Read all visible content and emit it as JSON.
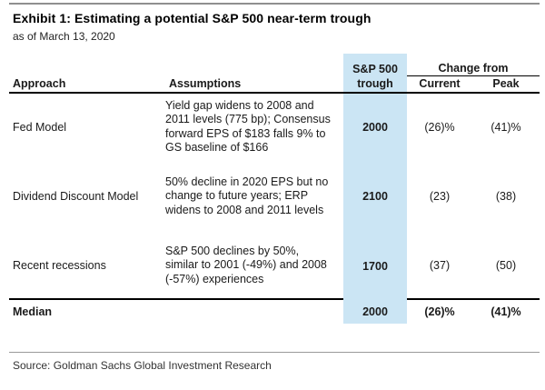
{
  "title": "Exhibit 1: Estimating a potential S&P 500 near-term trough",
  "subtitle": "as of March 13, 2020",
  "source": "Source: Goldman Sachs Global Investment Research",
  "colors": {
    "highlight": "#cbe5f4"
  },
  "table": {
    "headers": {
      "approach": "Approach",
      "assumptions": "Assumptions",
      "trough_line1": "S&P 500",
      "trough_line2": "trough",
      "change_from": "Change from",
      "current": "Current",
      "peak": "Peak"
    },
    "rows": [
      {
        "approach": "Fed Model",
        "assumptions": "Yield gap widens to 2008 and\n2011 levels (775 bp); Consensus\nforward EPS of $183 falls 9% to\nGS baseline of $166",
        "trough": "2000",
        "current": "(26)%",
        "peak": "(41)%"
      },
      {
        "approach": "Dividend Discount Model",
        "assumptions": "50% decline in 2020 EPS but no\nchange to future years; ERP\nwidens to 2008 and 2011 levels",
        "trough": "2100",
        "current": "(23)",
        "peak": "(38)"
      },
      {
        "approach": "Recent recessions",
        "assumptions": "S&P 500 declines by 50%,\nsimilar to 2001 (-49%) and 2008\n(-57%) experiences",
        "trough": "1700",
        "current": "(37)",
        "peak": "(50)"
      }
    ],
    "median": {
      "label": "Median",
      "trough": "2000",
      "current": "(26)%",
      "peak": "(41)%"
    }
  }
}
